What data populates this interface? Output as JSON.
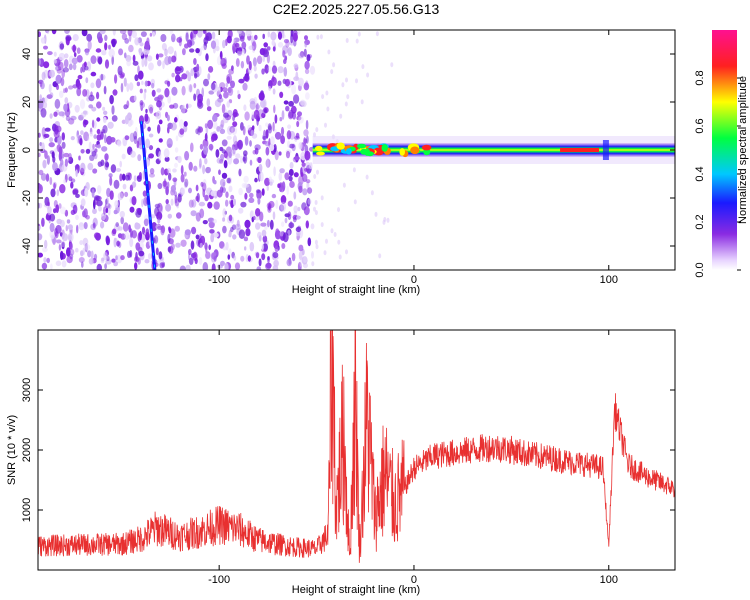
{
  "title": "C2E2.2025.227.05.56.G13",
  "colors": {
    "snr_line": "#e83030",
    "spectrogram_scatter": "#8a2be2",
    "background": "#ffffff"
  },
  "chart_data": [
    {
      "type": "heatmap",
      "xlabel": "Height of straight line (km)",
      "ylabel": "Frequency (Hz)",
      "xlim": [
        -193,
        134
      ],
      "ylim": [
        -50,
        50
      ],
      "x_ticks": [
        -100,
        0,
        100
      ],
      "y_ticks": [
        -40,
        -20,
        0,
        20,
        40
      ],
      "colorbar": {
        "label": "Normalized spectral amplitude",
        "range": [
          0,
          1
        ],
        "ticks": [
          0.0,
          0.2,
          0.4,
          0.6,
          0.8
        ],
        "colormap": "rainbow (violet→blue→cyan→green→yellow→red→magenta)"
      },
      "features": {
        "noise_region_x": [
          -193,
          -52
        ],
        "diagonal_track": {
          "x": [
            -140,
            -133
          ],
          "y": [
            12,
            -50
          ]
        },
        "carrier_band_x": [
          -52,
          134
        ],
        "carrier_frequency": 0
      }
    },
    {
      "type": "line",
      "xlabel": "Height of straight line (km)",
      "ylabel": "SNR (10 * v/v)",
      "xlim": [
        -193,
        134
      ],
      "ylim": [
        0,
        4000
      ],
      "x_ticks": [
        -100,
        0,
        100
      ],
      "y_ticks": [
        1000,
        2000,
        3000
      ],
      "series": [
        {
          "x": [
            -193,
            -170,
            -150,
            -140,
            -132,
            -120,
            -110,
            -100,
            -90,
            -80,
            -70,
            -60,
            -50,
            -44,
            -42,
            -40,
            -36,
            -33,
            -30,
            -28,
            -24,
            -20,
            -15,
            -10,
            -5,
            0,
            10,
            20,
            30,
            40,
            50,
            60,
            70,
            80,
            90,
            97,
            100,
            103,
            110,
            120,
            134
          ],
          "y": [
            400,
            420,
            430,
            520,
            700,
            560,
            640,
            750,
            680,
            500,
            430,
            380,
            350,
            600,
            3900,
            1000,
            2300,
            200,
            3100,
            300,
            2600,
            900,
            1600,
            1100,
            1350,
            1700,
            1900,
            1950,
            2000,
            2050,
            2000,
            1920,
            1870,
            1800,
            1750,
            1700,
            400,
            2700,
            1750,
            1550,
            1350
          ]
        }
      ]
    }
  ]
}
